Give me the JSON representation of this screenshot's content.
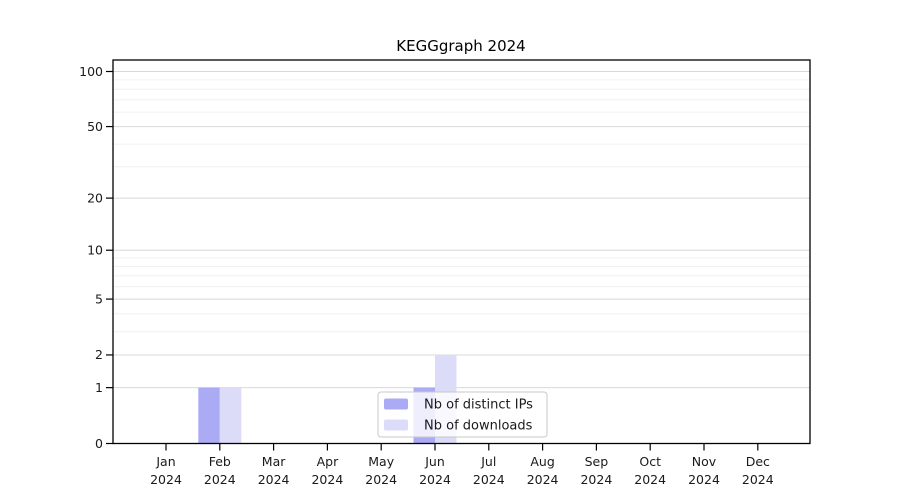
{
  "figure": {
    "title": "KEGGgraph 2024",
    "background_color": "#ffffff"
  },
  "chart_data": {
    "type": "bar",
    "title": "KEGGgraph 2024",
    "categories": [
      "Jan",
      "Feb",
      "Mar",
      "Apr",
      "May",
      "Jun",
      "Jul",
      "Aug",
      "Sep",
      "Oct",
      "Nov",
      "Dec"
    ],
    "category_year_label": "2024",
    "series": [
      {
        "name": "Nb of distinct IPs",
        "color": "#aaaaf5",
        "values": [
          0,
          1,
          0,
          0,
          0,
          1,
          0,
          0,
          0,
          0,
          0,
          0
        ]
      },
      {
        "name": "Nb of downloads",
        "color": "#dcdcf8",
        "values": [
          0,
          1,
          0,
          0,
          0,
          2,
          0,
          0,
          0,
          0,
          0,
          0
        ]
      }
    ],
    "y_scale": "log1p",
    "ylim": [
      0,
      115
    ],
    "y_major_ticks": [
      0,
      1,
      2,
      5,
      10,
      20,
      50,
      100
    ],
    "y_minor_gridlines": [
      3,
      4,
      6,
      7,
      8,
      9,
      30,
      40,
      60,
      70,
      80,
      90
    ],
    "grid": true,
    "legend": {
      "position": "inside-bottom-center",
      "entries": [
        "Nb of distinct IPs",
        "Nb of downloads"
      ],
      "background_color": "#ffffff",
      "background_opacity": 0.8,
      "border_color": "#c9c9c9"
    },
    "axis_color": "#000000",
    "text_color": "#1a1a1a",
    "major_grid_color": "#d8d8d8",
    "minor_grid_color": "#f0f0f1"
  }
}
